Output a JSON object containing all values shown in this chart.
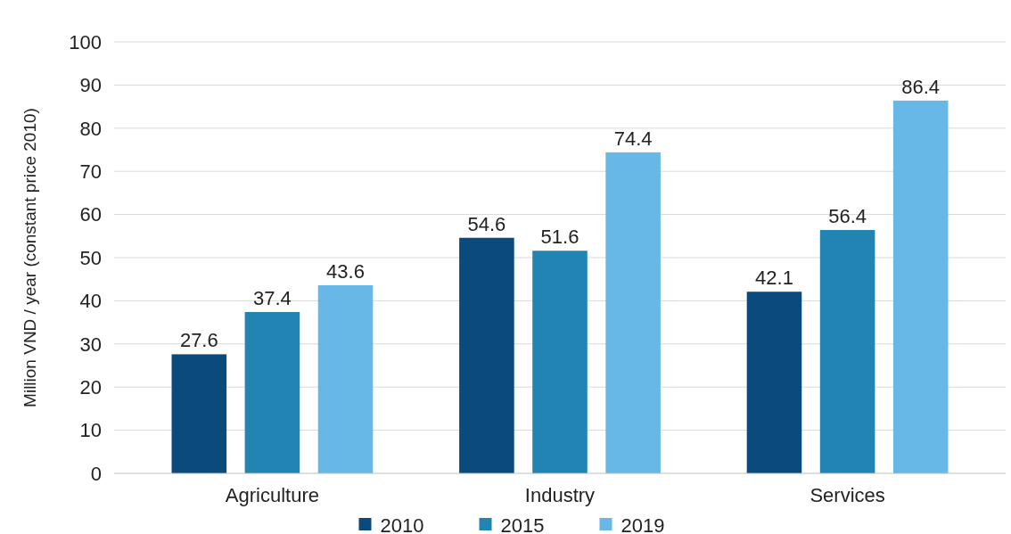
{
  "chart_data": {
    "type": "bar",
    "ylabel": "Million VND / year (constant price 2010)",
    "categories": [
      "Agriculture",
      "Industry",
      "Services"
    ],
    "series": [
      {
        "name": "2010",
        "color": "#0b4a7d",
        "values": [
          27.6,
          54.6,
          42.1
        ]
      },
      {
        "name": "2015",
        "color": "#2184b3",
        "values": [
          37.4,
          51.6,
          56.4
        ]
      },
      {
        "name": "2019",
        "color": "#67b8e6",
        "values": [
          43.6,
          74.4,
          86.4
        ]
      }
    ],
    "ylim": [
      0,
      100
    ],
    "yticks": [
      0,
      10,
      20,
      30,
      40,
      50,
      60,
      70,
      80,
      90,
      100
    ],
    "grid": "y",
    "legend": "bottom",
    "data_labels": true
  }
}
